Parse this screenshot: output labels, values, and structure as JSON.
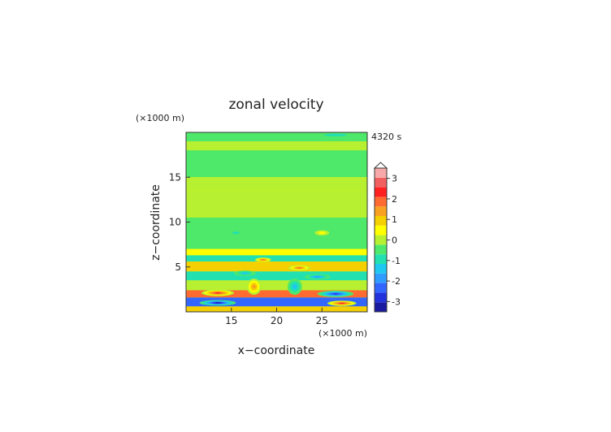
{
  "chart_data": {
    "type": "heatmap",
    "title": "zonal velocity",
    "xlabel": "x−coordinate",
    "ylabel": "z−coordinate",
    "x_unit": "(×1000 m)",
    "y_unit": "(×1000 m)",
    "time_label": "4320 s",
    "xlim": [
      10,
      30
    ],
    "ylim": [
      0,
      20
    ],
    "x_ticks": [
      15,
      20,
      25
    ],
    "y_ticks": [
      5,
      10,
      15
    ],
    "colorbar": {
      "levels": [
        -3.5,
        -3,
        -2.5,
        -2,
        -1.5,
        -1,
        -0.5,
        0,
        0.5,
        1,
        1.5,
        2,
        2.5,
        3,
        3.5
      ],
      "colors": [
        "#1a1aa0",
        "#2233dd",
        "#3366ff",
        "#2f9cff",
        "#1fc8f0",
        "#22e0b0",
        "#4ee86a",
        "#b7f030",
        "#ffff00",
        "#f5d000",
        "#f8a020",
        "#ff6a30",
        "#ff2020",
        "#f06060",
        "#f7a8a8"
      ],
      "tick_labels": [
        "-3",
        "-2",
        "-1",
        "0",
        "1",
        "2",
        "3"
      ],
      "tick_values": [
        -3,
        -2,
        -1,
        0,
        1,
        2,
        3
      ],
      "extend_max": true
    },
    "bands": [
      {
        "z": [
          19.0,
          20.0
        ],
        "value": -0.5
      },
      {
        "z": [
          18.0,
          19.0
        ],
        "value": 0.3
      },
      {
        "z": [
          15.0,
          18.0
        ],
        "value": -0.3
      },
      {
        "z": [
          13.5,
          15.0
        ],
        "value": 0.2
      },
      {
        "z": [
          10.5,
          13.5
        ],
        "value": 0.3
      },
      {
        "z": [
          7.0,
          10.5
        ],
        "value": -0.3
      },
      {
        "z": [
          6.3,
          7.0
        ],
        "value": 0.6
      },
      {
        "z": [
          5.6,
          6.3
        ],
        "value": -0.7
      },
      {
        "z": [
          4.5,
          5.6
        ],
        "value": 1.0
      },
      {
        "z": [
          3.5,
          4.5
        ],
        "value": -0.8
      },
      {
        "z": [
          2.4,
          3.5
        ],
        "value": 0.4
      },
      {
        "z": [
          1.6,
          2.4
        ],
        "value": 2.0
      },
      {
        "z": [
          0.6,
          1.6
        ],
        "value": -2.2
      },
      {
        "z": [
          0.0,
          0.6
        ],
        "value": 1.4
      }
    ],
    "features": [
      {
        "x": 13.5,
        "z": 2.1,
        "rx": 1.8,
        "rz": 0.35,
        "value": 3.2
      },
      {
        "x": 27.2,
        "z": 0.95,
        "rx": 1.6,
        "rz": 0.3,
        "value": 3.2
      },
      {
        "x": 13.5,
        "z": 1.0,
        "rx": 2.0,
        "rz": 0.3,
        "value": -3.4
      },
      {
        "x": 26.5,
        "z": 2.0,
        "rx": 2.0,
        "rz": 0.35,
        "value": -3.0
      },
      {
        "x": 18.5,
        "z": 5.8,
        "rx": 0.9,
        "rz": 0.25,
        "value": 2.6
      },
      {
        "x": 22.5,
        "z": 4.9,
        "rx": 1.2,
        "rz": 0.3,
        "value": 2.5
      },
      {
        "x": 16.5,
        "z": 4.3,
        "rx": 1.2,
        "rz": 0.3,
        "value": -1.6
      },
      {
        "x": 24.5,
        "z": 3.9,
        "rx": 1.4,
        "rz": 0.3,
        "value": -1.8
      },
      {
        "x": 15.5,
        "z": 8.8,
        "rx": 0.8,
        "rz": 0.3,
        "value": -1.0
      },
      {
        "x": 25.0,
        "z": 8.8,
        "rx": 0.8,
        "rz": 0.3,
        "value": 1.0
      },
      {
        "x": 17.5,
        "z": 2.8,
        "rx": 0.8,
        "rz": 0.9,
        "value": 1.8
      },
      {
        "x": 22.0,
        "z": 2.8,
        "rx": 0.8,
        "rz": 0.9,
        "value": -1.5
      },
      {
        "x": 26.5,
        "z": 19.7,
        "rx": 2.5,
        "rz": 0.3,
        "value": -1.0
      }
    ]
  }
}
